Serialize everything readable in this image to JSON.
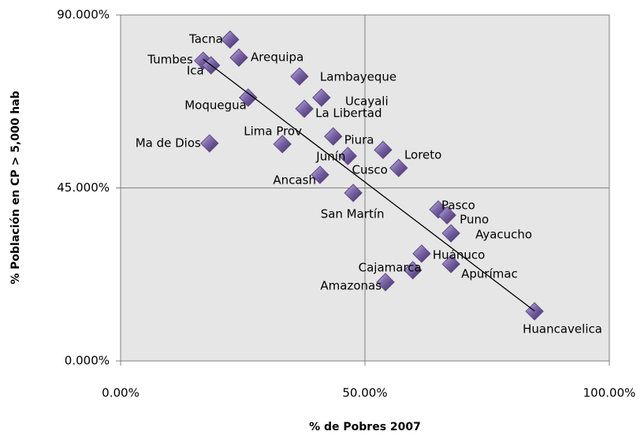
{
  "chart_data": {
    "type": "scatter",
    "xlabel": "% de Pobres 2007",
    "ylabel": "% Población  en CP > 5,000 hab",
    "xlim": [
      0,
      100
    ],
    "ylim": [
      0,
      90
    ],
    "xticks": [
      {
        "value": 0,
        "label": "0.00%"
      },
      {
        "value": 50,
        "label": "50.00%"
      },
      {
        "value": 100,
        "label": "100.00%"
      }
    ],
    "yticks": [
      {
        "value": 0,
        "label": "0.000%"
      },
      {
        "value": 45,
        "label": "45.000%"
      },
      {
        "value": 90,
        "label": "90.000%"
      }
    ],
    "grid": true,
    "color": "#5e4a86",
    "labels": [
      "Tacna",
      "Arequipa",
      "Tumbes",
      "Ica",
      "Lambayeque",
      "Moquegua",
      "Ucayali",
      "La Libertad",
      "Ma de Dios",
      "Lima Prov",
      "Piura",
      "Loreto",
      "Junín",
      "Cusco",
      "Ancash",
      "San Martín",
      "Pasco",
      "Puno",
      "Ayacucho",
      "Huánuco",
      "Cajamarca",
      "Apurímac",
      "Amazonas",
      "Huancavelica"
    ],
    "x": [
      22.4,
      24.2,
      16.9,
      18.5,
      36.6,
      26.1,
      41.1,
      37.6,
      18.2,
      33.1,
      43.5,
      53.7,
      46.5,
      56.9,
      40.8,
      47.6,
      65.0,
      66.8,
      67.6,
      61.6,
      59.8,
      67.6,
      54.2,
      84.7
    ],
    "y": [
      83.6,
      78.9,
      78.1,
      76.9,
      74.0,
      68.5,
      68.5,
      65.6,
      56.6,
      56.4,
      58.4,
      54.9,
      53.3,
      50.2,
      48.4,
      43.7,
      39.4,
      37.9,
      33.2,
      27.9,
      23.6,
      25.2,
      20.5,
      12.9
    ],
    "trendline": {
      "x": [
        16.9,
        84.7
      ],
      "y": [
        78.5,
        13.0
      ],
      "color": "#000000"
    }
  }
}
